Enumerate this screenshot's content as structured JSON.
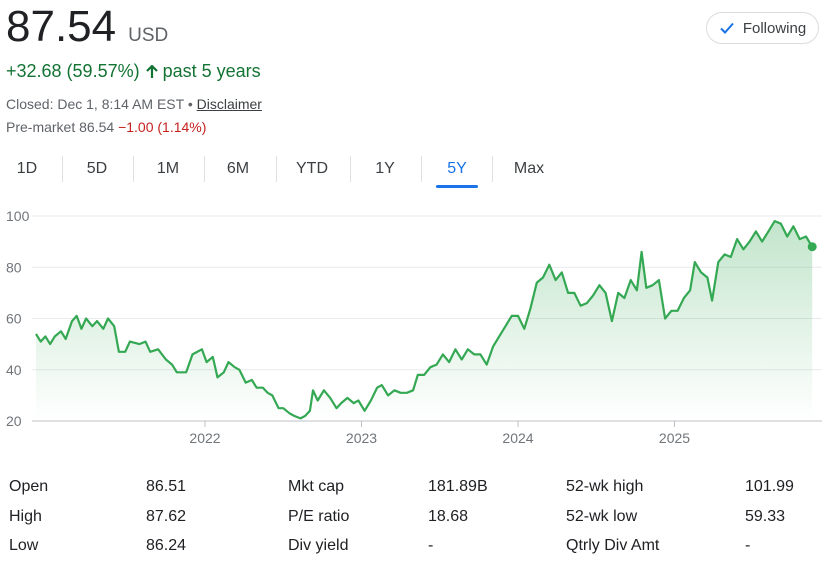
{
  "quote": {
    "price": "87.54",
    "currency": "USD",
    "change": "+32.68 (59.57%)",
    "change_period": "past 5 years",
    "closed_text": "Closed: Dec 1, 8:14 AM EST • ",
    "disclaimer": "Disclaimer",
    "premarket_label": "Pre-market 86.54 ",
    "premarket_change": "−1.00 (1.14%)"
  },
  "follow_button": {
    "label": "Following"
  },
  "tabs": [
    {
      "label": "1D",
      "active": false
    },
    {
      "label": "5D",
      "active": false
    },
    {
      "label": "1M",
      "active": false
    },
    {
      "label": "6M",
      "active": false
    },
    {
      "label": "YTD",
      "active": false
    },
    {
      "label": "1Y",
      "active": false
    },
    {
      "label": "5Y",
      "active": true
    },
    {
      "label": "Max",
      "active": false
    }
  ],
  "colors": {
    "line": "#34a853",
    "positive": "#137333",
    "negative": "#c5221f",
    "accent": "#1a73e8",
    "grid": "#e8eaed"
  },
  "chart_data": {
    "type": "area",
    "y_ticks": [
      "100",
      "80",
      "60",
      "40",
      "20"
    ],
    "x_ticks": [
      "2022",
      "2023",
      "2024",
      "2025"
    ],
    "ylim": [
      20,
      100
    ],
    "grid": "horizontal",
    "series": [
      {
        "values": [
          [
            2020.92,
            54
          ],
          [
            2020.95,
            51
          ],
          [
            2020.98,
            53
          ],
          [
            2021.01,
            50
          ],
          [
            2021.04,
            53
          ],
          [
            2021.08,
            55
          ],
          [
            2021.11,
            52
          ],
          [
            2021.15,
            59
          ],
          [
            2021.18,
            61
          ],
          [
            2021.21,
            56
          ],
          [
            2021.24,
            60
          ],
          [
            2021.28,
            57
          ],
          [
            2021.31,
            59
          ],
          [
            2021.35,
            56
          ],
          [
            2021.38,
            60
          ],
          [
            2021.42,
            57
          ],
          [
            2021.45,
            47
          ],
          [
            2021.49,
            47
          ],
          [
            2021.52,
            51
          ],
          [
            2021.58,
            50
          ],
          [
            2021.62,
            51
          ],
          [
            2021.65,
            47
          ],
          [
            2021.7,
            48
          ],
          [
            2021.75,
            44
          ],
          [
            2021.79,
            42
          ],
          [
            2021.82,
            39
          ],
          [
            2021.88,
            39
          ],
          [
            2021.92,
            46
          ],
          [
            2021.98,
            48
          ],
          [
            2022.01,
            43
          ],
          [
            2022.05,
            45
          ],
          [
            2022.08,
            37
          ],
          [
            2022.12,
            39
          ],
          [
            2022.15,
            43
          ],
          [
            2022.19,
            41
          ],
          [
            2022.22,
            40
          ],
          [
            2022.26,
            35
          ],
          [
            2022.3,
            36
          ],
          [
            2022.33,
            33
          ],
          [
            2022.37,
            33
          ],
          [
            2022.4,
            31
          ],
          [
            2022.43,
            30
          ],
          [
            2022.47,
            25
          ],
          [
            2022.5,
            25
          ],
          [
            2022.54,
            23
          ],
          [
            2022.57,
            22
          ],
          [
            2022.61,
            21
          ],
          [
            2022.64,
            22
          ],
          [
            2022.67,
            24
          ],
          [
            2022.69,
            32
          ],
          [
            2022.72,
            28
          ],
          [
            2022.76,
            32
          ],
          [
            2022.8,
            29
          ],
          [
            2022.84,
            25
          ],
          [
            2022.87,
            27
          ],
          [
            2022.91,
            29
          ],
          [
            2022.95,
            27
          ],
          [
            2022.98,
            28
          ],
          [
            2023.02,
            24
          ],
          [
            2023.06,
            28
          ],
          [
            2023.1,
            33
          ],
          [
            2023.13,
            34
          ],
          [
            2023.17,
            30
          ],
          [
            2023.21,
            32
          ],
          [
            2023.25,
            31
          ],
          [
            2023.29,
            31
          ],
          [
            2023.33,
            32
          ],
          [
            2023.36,
            38
          ],
          [
            2023.4,
            38
          ],
          [
            2023.44,
            41
          ],
          [
            2023.48,
            42
          ],
          [
            2023.52,
            46
          ],
          [
            2023.56,
            43
          ],
          [
            2023.6,
            48
          ],
          [
            2023.64,
            44
          ],
          [
            2023.68,
            48
          ],
          [
            2023.72,
            46
          ],
          [
            2023.76,
            46
          ],
          [
            2023.8,
            42
          ],
          [
            2023.84,
            49
          ],
          [
            2023.88,
            53
          ],
          [
            2023.92,
            57
          ],
          [
            2023.96,
            61
          ],
          [
            2024.0,
            61
          ],
          [
            2024.04,
            56
          ],
          [
            2024.08,
            64
          ],
          [
            2024.12,
            74
          ],
          [
            2024.16,
            76
          ],
          [
            2024.2,
            81
          ],
          [
            2024.24,
            75
          ],
          [
            2024.28,
            78
          ],
          [
            2024.32,
            70
          ],
          [
            2024.36,
            70
          ],
          [
            2024.4,
            65
          ],
          [
            2024.44,
            66
          ],
          [
            2024.48,
            69
          ],
          [
            2024.52,
            73
          ],
          [
            2024.56,
            70
          ],
          [
            2024.6,
            59
          ],
          [
            2024.64,
            70
          ],
          [
            2024.68,
            68
          ],
          [
            2024.72,
            75
          ],
          [
            2024.76,
            71
          ],
          [
            2024.79,
            86
          ],
          [
            2024.82,
            72
          ],
          [
            2024.86,
            73
          ],
          [
            2024.9,
            75
          ],
          [
            2024.94,
            60
          ],
          [
            2024.98,
            63
          ],
          [
            2025.02,
            63
          ],
          [
            2025.06,
            68
          ],
          [
            2025.1,
            71
          ],
          [
            2025.13,
            82
          ],
          [
            2025.17,
            78
          ],
          [
            2025.21,
            76
          ],
          [
            2025.24,
            67
          ],
          [
            2025.28,
            82
          ],
          [
            2025.32,
            85
          ],
          [
            2025.36,
            84
          ],
          [
            2025.4,
            91
          ],
          [
            2025.44,
            87
          ],
          [
            2025.48,
            90
          ],
          [
            2025.52,
            94
          ],
          [
            2025.56,
            90
          ],
          [
            2025.6,
            94
          ],
          [
            2025.64,
            98
          ],
          [
            2025.68,
            97
          ],
          [
            2025.72,
            92
          ],
          [
            2025.76,
            96
          ],
          [
            2025.8,
            91
          ],
          [
            2025.84,
            92
          ],
          [
            2025.88,
            88
          ]
        ]
      }
    ]
  },
  "stats": {
    "col1": [
      {
        "label": "Open",
        "value": "86.51"
      },
      {
        "label": "High",
        "value": "87.62"
      },
      {
        "label": "Low",
        "value": "86.24"
      }
    ],
    "col2": [
      {
        "label": "Mkt cap",
        "value": "181.89B"
      },
      {
        "label": "P/E ratio",
        "value": "18.68"
      },
      {
        "label": "Div yield",
        "value": "-"
      }
    ],
    "col3": [
      {
        "label": "52-wk high",
        "value": "101.99"
      },
      {
        "label": "52-wk low",
        "value": "59.33"
      },
      {
        "label": "Qtrly Div Amt",
        "value": "-"
      }
    ]
  }
}
